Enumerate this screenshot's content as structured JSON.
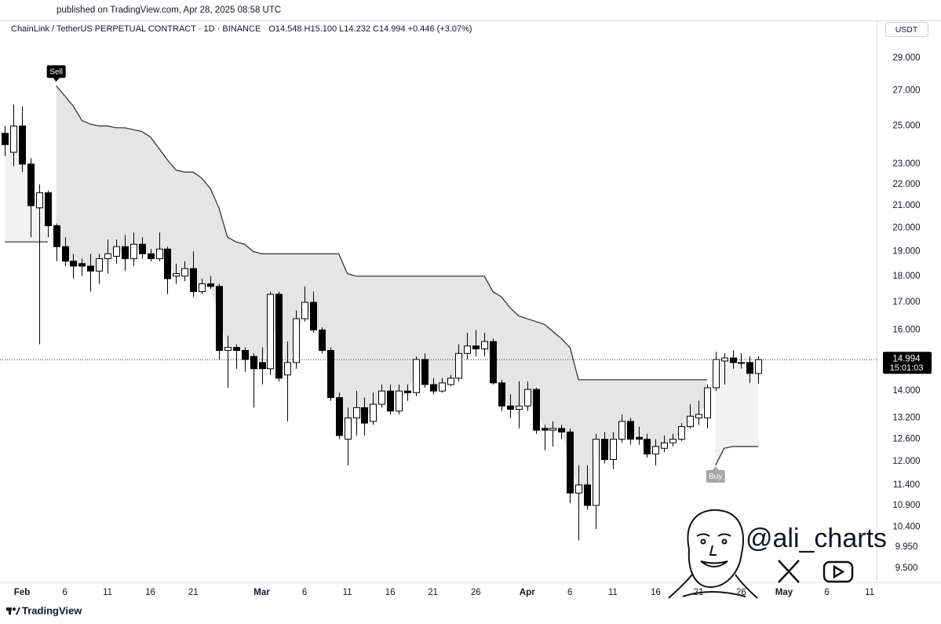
{
  "header": {
    "published": "published on TradingView.com, Apr 28, 2025 08:58 UTC",
    "symbol": "ChainLink / TetherUS PERPETUAL CONTRACT · 1D · BINANCE",
    "quote": "O14.548 H15.100 L14.232 C14.994 +0.446 (+3.07%)"
  },
  "chart_data": {
    "type": "candlestick",
    "x": [
      "2025-01-30",
      "2025-01-31",
      "2025-02-01",
      "2025-02-02",
      "2025-02-03",
      "2025-02-04",
      "2025-02-05",
      "2025-02-06",
      "2025-02-07",
      "2025-02-08",
      "2025-02-09",
      "2025-02-10",
      "2025-02-11",
      "2025-02-12",
      "2025-02-13",
      "2025-02-14",
      "2025-02-15",
      "2025-02-16",
      "2025-02-17",
      "2025-02-18",
      "2025-02-19",
      "2025-02-20",
      "2025-02-21",
      "2025-02-22",
      "2025-02-23",
      "2025-02-24",
      "2025-02-25",
      "2025-02-26",
      "2025-02-27",
      "2025-02-28",
      "2025-03-01",
      "2025-03-02",
      "2025-03-03",
      "2025-03-04",
      "2025-03-05",
      "2025-03-06",
      "2025-03-07",
      "2025-03-08",
      "2025-03-09",
      "2025-03-10",
      "2025-03-11",
      "2025-03-12",
      "2025-03-13",
      "2025-03-14",
      "2025-03-15",
      "2025-03-16",
      "2025-03-17",
      "2025-03-18",
      "2025-03-19",
      "2025-03-20",
      "2025-03-21",
      "2025-03-22",
      "2025-03-23",
      "2025-03-24",
      "2025-03-25",
      "2025-03-26",
      "2025-03-27",
      "2025-03-28",
      "2025-03-29",
      "2025-03-30",
      "2025-03-31",
      "2025-04-01",
      "2025-04-02",
      "2025-04-03",
      "2025-04-04",
      "2025-04-05",
      "2025-04-06",
      "2025-04-07",
      "2025-04-08",
      "2025-04-09",
      "2025-04-10",
      "2025-04-11",
      "2025-04-12",
      "2025-04-13",
      "2025-04-14",
      "2025-04-15",
      "2025-04-16",
      "2025-04-17",
      "2025-04-18",
      "2025-04-19",
      "2025-04-20",
      "2025-04-21",
      "2025-04-22",
      "2025-04-23",
      "2025-04-24",
      "2025-04-25",
      "2025-04-26",
      "2025-04-27",
      "2025-04-28"
    ],
    "open": [
      24.6,
      23.6,
      25.0,
      23.0,
      20.9,
      21.6,
      20.1,
      19.2,
      18.6,
      18.5,
      18.4,
      18.2,
      18.7,
      18.8,
      19.2,
      18.7,
      19.3,
      18.9,
      18.7,
      19.1,
      18.0,
      18.0,
      18.3,
      17.4,
      17.7,
      17.6,
      15.3,
      15.4,
      15.3,
      15.1,
      14.9,
      14.7,
      17.3,
      14.5,
      14.9,
      16.4,
      17.0,
      16.0,
      15.3,
      13.8,
      12.6,
      13.2,
      13.5,
      13.1,
      13.6,
      14.0,
      13.4,
      14.0,
      13.95,
      15.0,
      14.2,
      14.0,
      14.2,
      14.4,
      15.2,
      15.45,
      15.35,
      15.6,
      14.25,
      13.55,
      13.45,
      13.55,
      14.05,
      12.9,
      12.85,
      12.9,
      12.8,
      11.2,
      11.4,
      10.9,
      12.6,
      12.05,
      12.6,
      13.1,
      12.65,
      12.6,
      12.2,
      12.35,
      12.5,
      12.6,
      12.95,
      13.2,
      13.2,
      14.1,
      14.95,
      15.05,
      14.9,
      14.9,
      14.548
    ],
    "high": [
      25.0,
      26.2,
      26.1,
      23.3,
      22.0,
      21.7,
      20.2,
      19.6,
      18.9,
      18.7,
      18.9,
      18.9,
      19.5,
      19.5,
      19.7,
      19.8,
      19.6,
      19.1,
      19.8,
      19.2,
      18.5,
      18.6,
      19.0,
      17.9,
      18.0,
      17.7,
      15.8,
      15.5,
      15.4,
      15.2,
      15.4,
      17.4,
      17.4,
      15.6,
      16.7,
      17.6,
      17.4,
      16.1,
      15.4,
      13.95,
      13.5,
      14.0,
      13.8,
      13.95,
      14.2,
      14.2,
      14.2,
      14.2,
      15.1,
      15.2,
      14.4,
      14.4,
      14.5,
      15.5,
      15.9,
      16.0,
      15.9,
      15.7,
      14.35,
      13.9,
      14.3,
      14.3,
      14.1,
      13.0,
      13.1,
      13.0,
      12.9,
      11.9,
      11.9,
      12.75,
      12.8,
      12.8,
      13.3,
      13.2,
      12.95,
      12.75,
      12.6,
      12.7,
      12.75,
      13.05,
      13.6,
      13.7,
      14.2,
      15.25,
      15.2,
      15.3,
      15.2,
      15.1,
      15.1
    ],
    "low": [
      23.4,
      22.9,
      22.6,
      19.6,
      15.5,
      19.6,
      18.6,
      18.4,
      17.9,
      18.0,
      17.4,
      17.7,
      18.1,
      18.5,
      18.2,
      18.4,
      18.7,
      18.6,
      18.6,
      17.3,
      17.7,
      17.8,
      17.2,
      17.3,
      17.5,
      15.0,
      14.1,
      14.7,
      14.6,
      13.5,
      14.2,
      14.5,
      14.3,
      13.1,
      14.7,
      16.3,
      15.9,
      15.2,
      13.7,
      12.6,
      11.9,
      12.7,
      12.7,
      13.0,
      13.5,
      13.3,
      13.3,
      13.7,
      13.85,
      14.1,
      13.9,
      13.95,
      14.15,
      14.3,
      15.0,
      15.1,
      15.1,
      14.2,
      13.4,
      13.2,
      12.9,
      13.4,
      12.75,
      12.3,
      12.4,
      12.6,
      10.95,
      10.1,
      10.8,
      10.35,
      11.95,
      11.8,
      12.5,
      12.45,
      12.45,
      12.1,
      11.9,
      12.25,
      12.4,
      12.55,
      12.9,
      13.0,
      12.9,
      14.0,
      14.2,
      14.7,
      14.7,
      14.25,
      14.232
    ],
    "close": [
      24.0,
      25.0,
      23.0,
      21.0,
      21.6,
      20.1,
      19.2,
      18.6,
      18.4,
      18.4,
      18.2,
      18.7,
      18.9,
      19.2,
      18.7,
      19.3,
      18.9,
      18.7,
      19.1,
      17.9,
      18.1,
      18.3,
      17.4,
      17.7,
      17.6,
      15.3,
      15.4,
      15.3,
      15.0,
      14.7,
      14.7,
      17.3,
      14.4,
      14.9,
      16.4,
      17.0,
      16.0,
      15.3,
      13.8,
      12.7,
      13.2,
      13.5,
      13.05,
      13.6,
      14.0,
      13.4,
      14.0,
      13.95,
      15.0,
      14.2,
      14.0,
      14.25,
      14.4,
      15.2,
      15.45,
      15.35,
      15.6,
      14.25,
      13.55,
      13.45,
      13.55,
      14.05,
      12.85,
      12.85,
      12.9,
      12.8,
      11.2,
      11.4,
      10.9,
      12.6,
      12.05,
      12.6,
      13.1,
      12.6,
      12.6,
      12.2,
      12.4,
      12.5,
      12.6,
      12.95,
      13.25,
      13.3,
      14.1,
      15.0,
      15.05,
      14.9,
      14.88,
      14.55,
      14.994
    ],
    "supertrend_down": [
      null,
      null,
      null,
      null,
      null,
      null,
      27.3,
      26.7,
      26.1,
      25.3,
      25.1,
      25.0,
      25.0,
      24.9,
      24.9,
      24.8,
      24.7,
      24.4,
      23.8,
      23.2,
      22.7,
      22.6,
      22.6,
      22.3,
      21.8,
      20.9,
      19.6,
      19.4,
      19.3,
      19.0,
      18.9,
      18.9,
      18.9,
      18.9,
      18.9,
      18.9,
      18.9,
      18.9,
      18.9,
      18.9,
      18.1,
      18.0,
      18.0,
      18.0,
      18.0,
      18.0,
      18.0,
      18.0,
      18.0,
      18.0,
      18.0,
      18.0,
      18.0,
      18.0,
      18.0,
      18.0,
      18.0,
      17.4,
      17.2,
      16.8,
      16.5,
      16.4,
      16.3,
      16.2,
      15.95,
      15.7,
      15.4,
      14.35,
      14.35,
      14.35,
      14.35,
      14.35,
      14.35,
      14.35,
      14.35,
      14.35,
      14.35,
      14.35,
      14.35,
      14.35,
      14.35,
      14.35,
      14.35,
      null,
      null,
      null,
      null,
      null,
      null
    ],
    "supertrend_up": [
      19.4,
      19.4,
      19.4,
      19.4,
      19.4,
      19.4,
      null,
      null,
      null,
      null,
      null,
      null,
      null,
      null,
      null,
      null,
      null,
      null,
      null,
      null,
      null,
      null,
      null,
      null,
      null,
      null,
      null,
      null,
      null,
      null,
      null,
      null,
      null,
      null,
      null,
      null,
      null,
      null,
      null,
      null,
      null,
      null,
      null,
      null,
      null,
      null,
      null,
      null,
      null,
      null,
      null,
      null,
      null,
      null,
      null,
      null,
      null,
      null,
      null,
      null,
      null,
      null,
      null,
      null,
      null,
      null,
      null,
      null,
      null,
      null,
      null,
      null,
      null,
      null,
      null,
      null,
      null,
      null,
      null,
      null,
      null,
      null,
      null,
      11.9,
      12.35,
      12.4,
      12.4,
      12.4,
      12.4
    ],
    "signals": [
      {
        "label": "Sell",
        "x": "2025-02-05"
      },
      {
        "label": "Buy",
        "x": "2025-04-23"
      }
    ],
    "currency": "USDT",
    "log_scale": true,
    "xlim": [
      "2025-01-29",
      "2025-05-12"
    ],
    "ylim": [
      9.2,
      30.3
    ],
    "yticks": [
      {
        "value": 29,
        "label": "29.000"
      },
      {
        "value": 27,
        "label": "27.000"
      },
      {
        "value": 25,
        "label": "25.000"
      },
      {
        "value": 23,
        "label": "23.000"
      },
      {
        "value": 22,
        "label": "22.000"
      },
      {
        "value": 21,
        "label": "21.000"
      },
      {
        "value": 20,
        "label": "20.000"
      },
      {
        "value": 19,
        "label": "19.000"
      },
      {
        "value": 18,
        "label": "18.000"
      },
      {
        "value": 17,
        "label": "17.000"
      },
      {
        "value": 16,
        "label": "16.000"
      },
      {
        "value": 14,
        "label": "14.000"
      },
      {
        "value": 13.2,
        "label": "13.200"
      },
      {
        "value": 12.6,
        "label": "12.600"
      },
      {
        "value": 12,
        "label": "12.000"
      },
      {
        "value": 11.4,
        "label": "11.400"
      },
      {
        "value": 10.9,
        "label": "10.900"
      },
      {
        "value": 10.4,
        "label": "10.400"
      },
      {
        "value": 9.95,
        "label": "9.950"
      },
      {
        "value": 9.5,
        "label": "9.500"
      }
    ],
    "xticks": [
      {
        "value": "2025-02-01",
        "label": "Feb"
      },
      {
        "value": "2025-02-06",
        "label": "6"
      },
      {
        "value": "2025-02-11",
        "label": "11"
      },
      {
        "value": "2025-02-16",
        "label": "16"
      },
      {
        "value": "2025-02-21",
        "label": "21"
      },
      {
        "value": "2025-03-01",
        "label": "Mar"
      },
      {
        "value": "2025-03-06",
        "label": "6"
      },
      {
        "value": "2025-03-11",
        "label": "11"
      },
      {
        "value": "2025-03-16",
        "label": "16"
      },
      {
        "value": "2025-03-21",
        "label": "21"
      },
      {
        "value": "2025-03-26",
        "label": "26"
      },
      {
        "value": "2025-04-01",
        "label": "Apr"
      },
      {
        "value": "2025-04-06",
        "label": "6"
      },
      {
        "value": "2025-04-11",
        "label": "11"
      },
      {
        "value": "2025-04-16",
        "label": "16"
      },
      {
        "value": "2025-04-21",
        "label": "21"
      },
      {
        "value": "2025-04-26",
        "label": "26"
      },
      {
        "value": "2025-05-01",
        "label": "May"
      },
      {
        "value": "2025-05-06",
        "label": "6"
      },
      {
        "value": "2025-05-11",
        "label": "11"
      }
    ],
    "last_price": {
      "value": 14.994,
      "label": "14.994"
    },
    "countdown": "15:01:03",
    "colors": {
      "up": "#ffffff",
      "down": "#000000",
      "wick": "#000000",
      "trend": "#2a2a2a",
      "fill_down": "#e5e5e5",
      "fill_up": "#f2f2f2",
      "sell": "#000000",
      "buy": "#a6a6a6"
    }
  },
  "watermark": "@ali_charts",
  "brand": "TradingView"
}
